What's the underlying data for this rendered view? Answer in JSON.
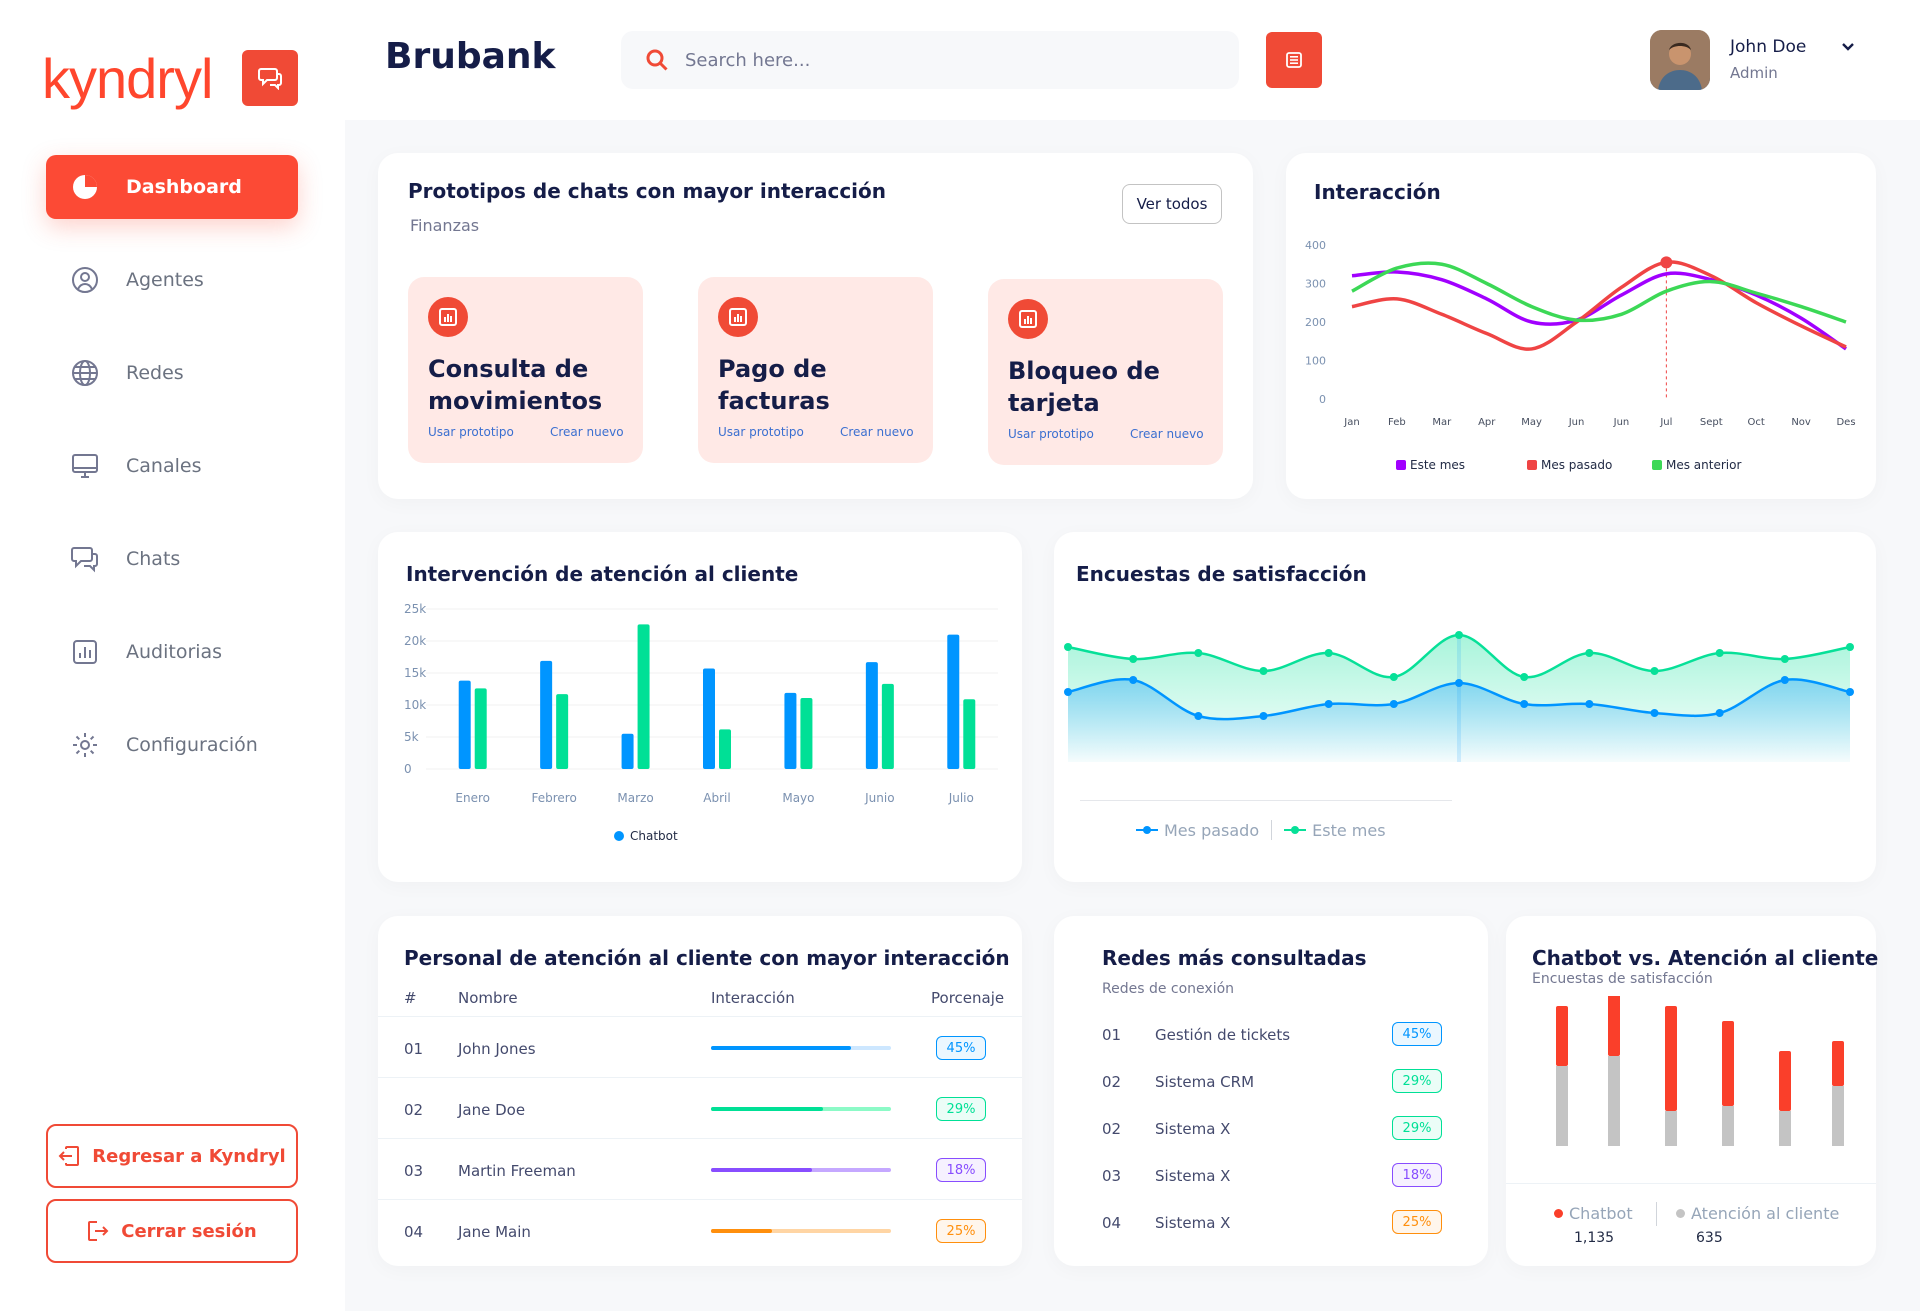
{
  "sidebar": {
    "logo": "kyndryl",
    "items": [
      {
        "label": "Dashboard",
        "icon": "pie-chart-icon",
        "active": true
      },
      {
        "label": "Agentes",
        "icon": "user-circle-icon"
      },
      {
        "label": "Redes",
        "icon": "globe-icon"
      },
      {
        "label": "Canales",
        "icon": "monitor-icon"
      },
      {
        "label": "Chats",
        "icon": "chat-bubbles-icon"
      },
      {
        "label": "Auditorias",
        "icon": "bar-chart-icon"
      },
      {
        "label": "Configuración",
        "icon": "gear-icon"
      }
    ],
    "back_label": "Regresar a Kyndryl",
    "logout_label": "Cerrar sesión"
  },
  "topbar": {
    "brand": "Brubank",
    "search_placeholder": "Search here...",
    "user_name": "John Doe",
    "user_role": "Admin"
  },
  "colors": {
    "accent": "#f04a36",
    "navy": "#151d48",
    "green": "#22c55e",
    "blue": "#0095ff",
    "purple": "#a100ff"
  },
  "prototypes": {
    "title": "Prototipos de chats con mayor interacción",
    "subtitle": "Finanzas",
    "view_all": "Ver todos",
    "use_label": "Usar prototipo",
    "new_label": "Crear nuevo",
    "items": [
      "Consulta de movimientos",
      "Pago de facturas",
      "Bloqueo de tarjeta"
    ]
  },
  "interaccion": {
    "title": "Interacción",
    "chart_data": {
      "type": "line",
      "categories": [
        "Jan",
        "Feb",
        "Mar",
        "Apr",
        "May",
        "Jun",
        "Jun",
        "Jul",
        "Sept",
        "Oct",
        "Nov",
        "Des"
      ],
      "ylim": [
        0,
        400
      ],
      "yticks": [
        0,
        100,
        200,
        300,
        400
      ],
      "series": [
        {
          "name": "Este mes",
          "color": "#a100ff",
          "values": [
            320,
            330,
            310,
            260,
            200,
            205,
            270,
            325,
            310,
            270,
            210,
            130
          ]
        },
        {
          "name": "Mes pasado",
          "color": "#ef4444",
          "values": [
            240,
            260,
            220,
            170,
            130,
            200,
            290,
            355,
            320,
            250,
            190,
            135
          ]
        },
        {
          "name": "Mes anterior",
          "color": "#3cd856",
          "values": [
            280,
            340,
            350,
            300,
            240,
            205,
            220,
            280,
            305,
            275,
            240,
            200
          ]
        }
      ]
    }
  },
  "intervencion": {
    "title": "Intervención de atención al cliente",
    "chart_data": {
      "type": "bar",
      "categories": [
        "Enero",
        "Febrero",
        "Marzo",
        "Abril",
        "Mayo",
        "Junio",
        "Julio"
      ],
      "ylim": [
        0,
        25000
      ],
      "yticks": [
        "0",
        "5k",
        "10k",
        "15k",
        "20k",
        "25k"
      ],
      "series": [
        {
          "name": "Chatbot",
          "color": "#0095ff",
          "values": [
            13800,
            16900,
            5500,
            15700,
            11900,
            16700,
            21000
          ]
        },
        {
          "name": "",
          "color": "#00e096",
          "values": [
            12600,
            11700,
            22600,
            6200,
            11100,
            13300,
            10900
          ]
        }
      ]
    }
  },
  "encuestas": {
    "title": "Encuestas de satisfacción",
    "chart_data": {
      "type": "area",
      "series": [
        {
          "name": "Mes pasado",
          "color": "#0095ff",
          "values": [
            3.0,
            3.4,
            2.2,
            2.2,
            2.6,
            2.6,
            3.3,
            2.6,
            2.6,
            2.3,
            2.3,
            3.4,
            3.0
          ]
        },
        {
          "name": "Este mes",
          "color": "#07e098",
          "values": [
            4.5,
            4.1,
            4.3,
            3.7,
            4.3,
            3.5,
            4.9,
            3.5,
            4.3,
            3.7,
            4.3,
            4.1,
            4.5
          ]
        }
      ]
    }
  },
  "personal": {
    "title": "Personal de atención al cliente con mayor interacción",
    "headers": [
      "#",
      "Nombre",
      "Interacción",
      "Porcenaje"
    ],
    "rows": [
      {
        "num": "01",
        "name": "John Jones",
        "pct": "45%",
        "progress": 0.78,
        "color": "#0095ff",
        "light": "#cde7ff"
      },
      {
        "num": "02",
        "name": "Jane Doe",
        "pct": "29%",
        "progress": 0.62,
        "color": "#00e096",
        "light": "#8cfac7"
      },
      {
        "num": "03",
        "name": "Martin Freeman",
        "pct": "18%",
        "progress": 0.56,
        "color": "#884dff",
        "light": "#c5a8ff"
      },
      {
        "num": "04",
        "name": "Jane Main",
        "pct": "25%",
        "progress": 0.34,
        "color": "#ff8f0d",
        "light": "#ffd5a4"
      }
    ]
  },
  "redes": {
    "title": "Redes más consultadas",
    "subtitle": "Redes de conexión",
    "rows": [
      {
        "num": "01",
        "name": "Gestión de tickets",
        "pct": "45%",
        "color": "#0095ff"
      },
      {
        "num": "02",
        "name": "Sistema  CRM",
        "pct": "29%",
        "color": "#00e096"
      },
      {
        "num": "02",
        "name": "Sistema X",
        "pct": "29%",
        "color": "#00e096"
      },
      {
        "num": "03",
        "name": "Sistema X",
        "pct": "18%",
        "color": "#884dff"
      },
      {
        "num": "04",
        "name": "Sistema X",
        "pct": "25%",
        "color": "#ff8f0d"
      }
    ]
  },
  "chatbot_vs": {
    "title": "Chatbot vs. Atención al cliente",
    "subtitle": "Encuestas de satisfacción",
    "chart_data": {
      "type": "bar",
      "stacked": true,
      "series": [
        {
          "name": "Chatbot",
          "color": "#fa3f2a",
          "values": [
            60,
            80,
            105,
            85,
            60,
            45
          ]
        },
        {
          "name": "Atención al cliente",
          "color": "#c4c4c4",
          "values": [
            80,
            90,
            35,
            40,
            35,
            60
          ]
        }
      ],
      "totals": [
        {
          "label": "Chatbot",
          "value": "1,135"
        },
        {
          "label": "Atención al cliente",
          "value": "635"
        }
      ]
    }
  }
}
